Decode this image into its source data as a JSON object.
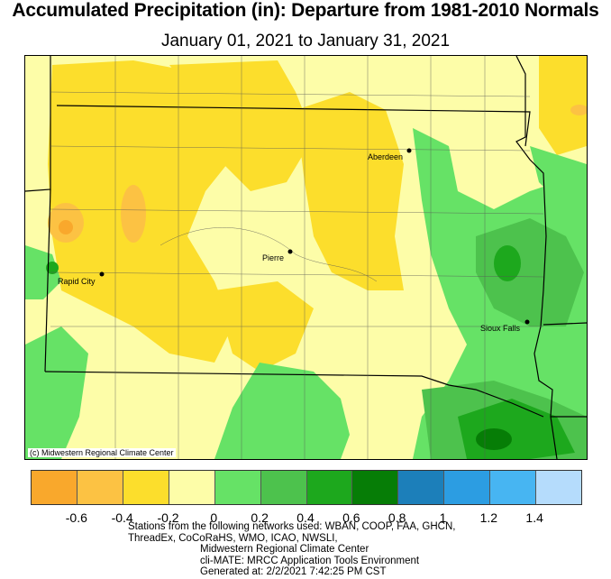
{
  "title": "Accumulated Precipitation (in): Departure from 1981-2010 Normals",
  "subtitle": "January 01, 2021 to January 31, 2021",
  "credit": "(c) Midwestern Regional Climate Center",
  "cities": [
    {
      "name": "Aberdeen"
    },
    {
      "name": "Pierre"
    },
    {
      "name": "Rapid City"
    },
    {
      "name": "Sioux Falls"
    }
  ],
  "legend": {
    "colors": [
      "#f9a82c",
      "#fcc243",
      "#fcde2c",
      "#fdfda8",
      "#66e266",
      "#4dc24d",
      "#1da81d",
      "#067d06",
      "#1c7fba",
      "#2c9de2",
      "#47b5f2",
      "#b5dcfc"
    ],
    "ticks": [
      "-0.6",
      "-0.4",
      "-0.2",
      "0",
      "0.2",
      "0.4",
      "0.6",
      "0.8",
      "1",
      "1.2",
      "1.4"
    ]
  },
  "footer": [
    "Stations from the following networks used: WBAN, COOP, FAA, GHCN,",
    "ThreadEx, CoCoRaHS, WMO, ICAO, NWSLI,",
    "Midwestern Regional Climate Center",
    "cli-MATE: MRCC Application Tools Environment",
    "Generated at: 2/2/2021 7:42:25 PM CST"
  ]
}
